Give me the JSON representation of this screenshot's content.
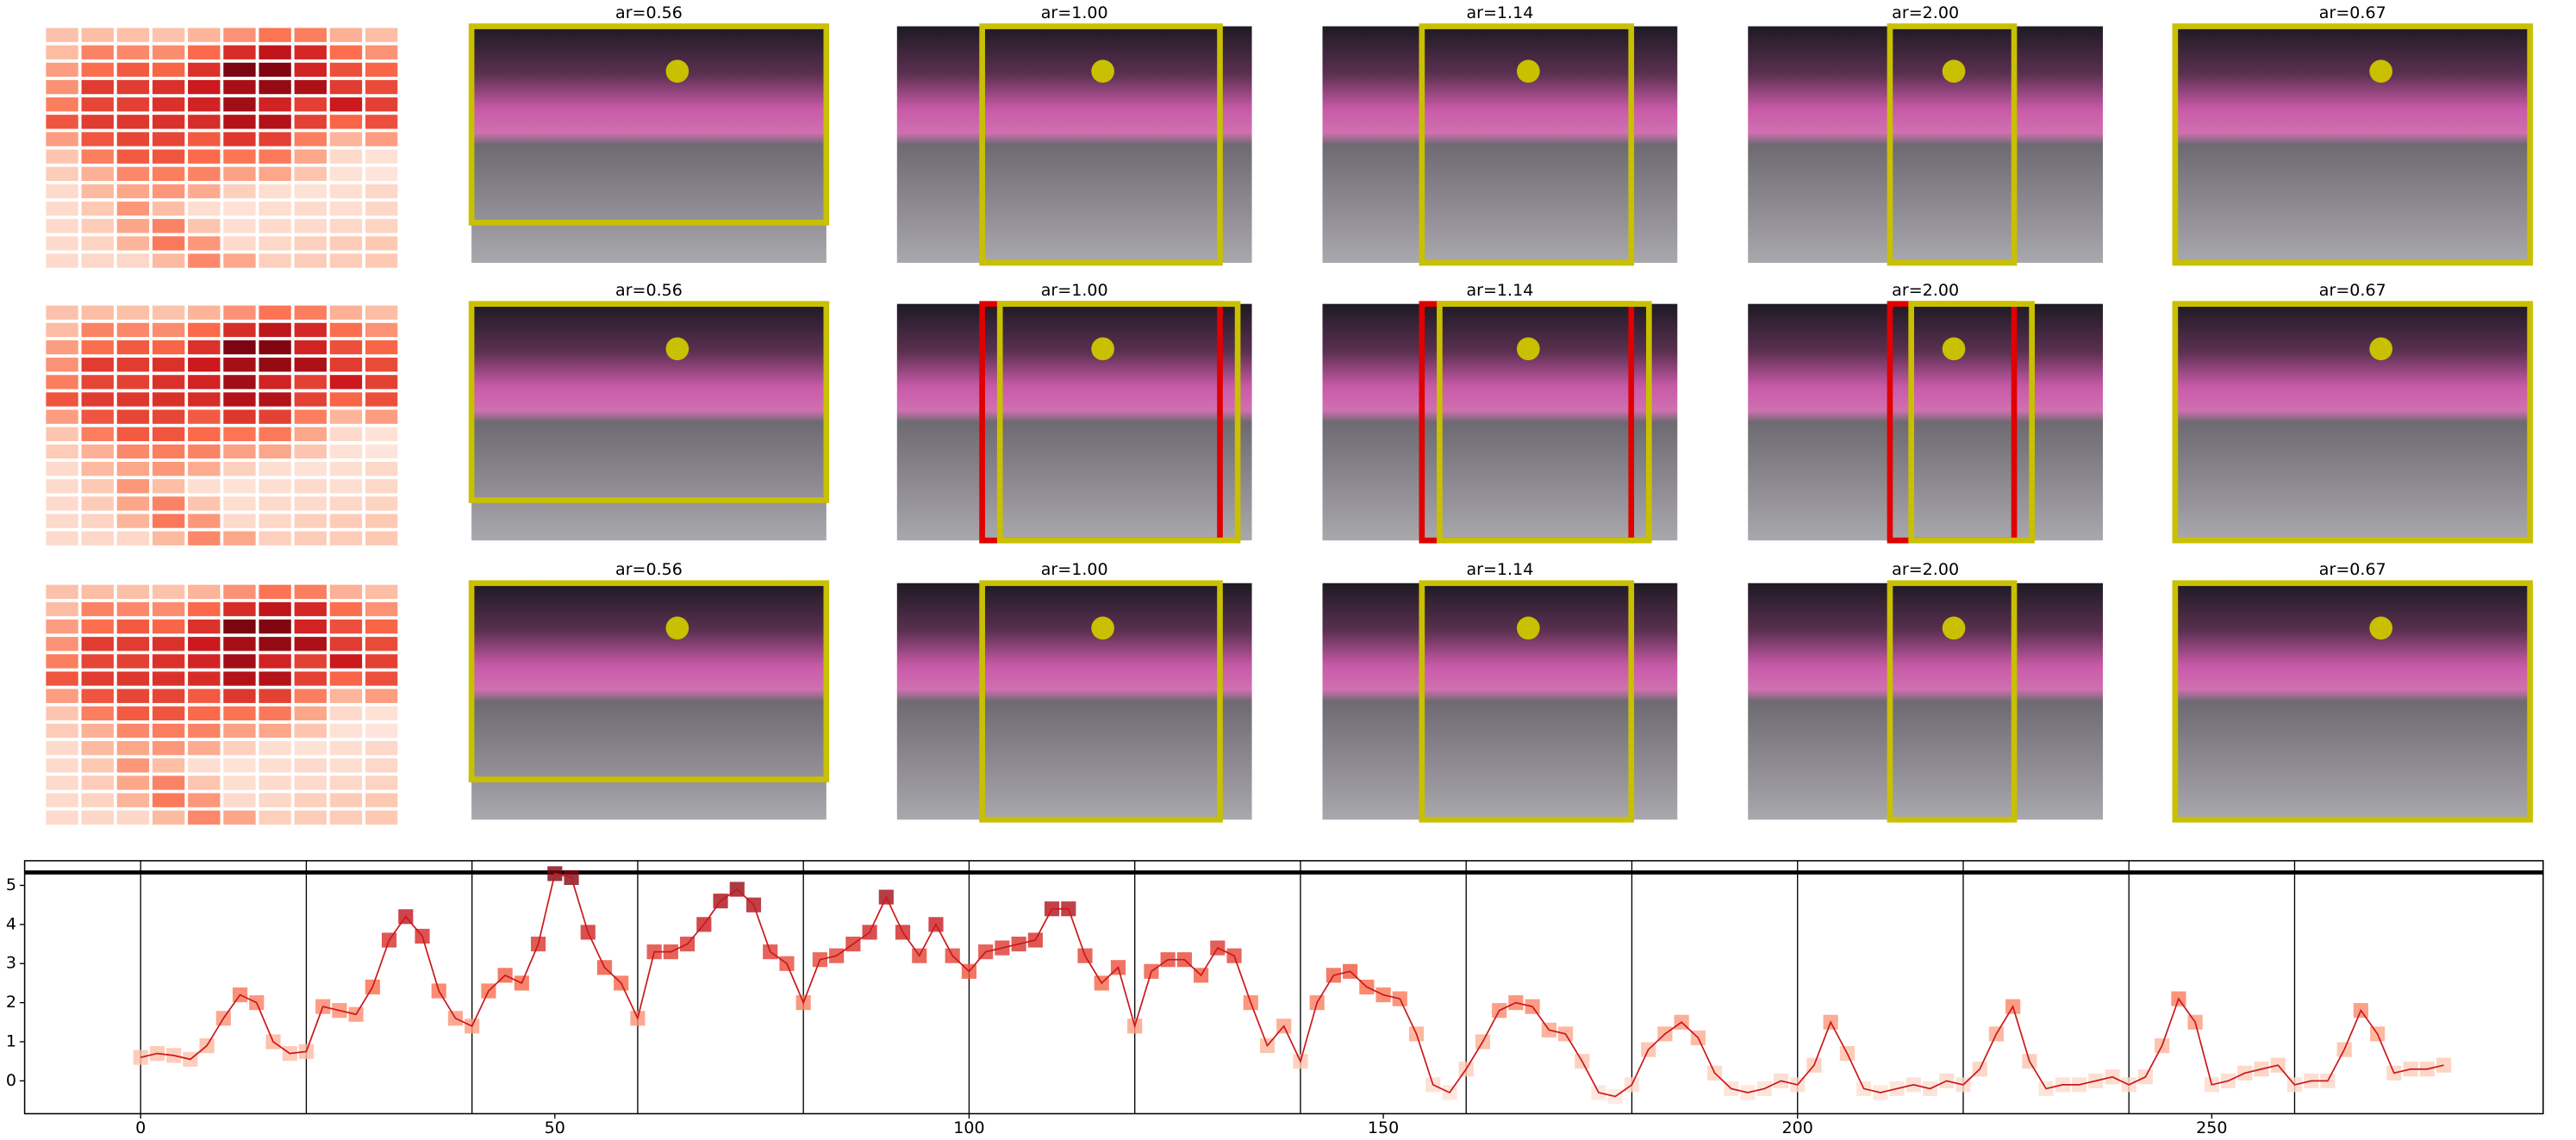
{
  "panels": {
    "rows": [
      {
        "titles": [
          "ar=0.56",
          "ar=1.00",
          "ar=1.14",
          "ar=2.00",
          "ar=0.67"
        ]
      },
      {
        "titles": [
          "ar=0.56",
          "ar=1.00",
          "ar=1.14",
          "ar=2.00",
          "ar=0.67"
        ]
      },
      {
        "titles": [
          "ar=0.56",
          "ar=1.00",
          "ar=1.14",
          "ar=2.00",
          "ar=0.67"
        ]
      }
    ]
  },
  "chart_data": {
    "type": "line",
    "x": [
      0,
      2,
      4,
      6,
      8,
      10,
      12,
      14,
      16,
      18,
      20,
      22,
      24,
      26,
      28,
      30,
      32,
      34,
      36,
      38,
      40,
      42,
      44,
      46,
      48,
      50,
      52,
      54,
      56,
      58,
      60,
      62,
      64,
      66,
      68,
      70,
      72,
      74,
      76,
      78,
      80,
      82,
      84,
      86,
      88,
      90,
      92,
      94,
      96,
      98,
      100,
      102,
      104,
      106,
      108,
      110,
      112,
      114,
      116,
      118,
      120,
      122,
      124,
      126,
      128,
      130,
      132,
      134,
      136,
      138,
      140,
      142,
      144,
      146,
      148,
      150,
      152,
      154,
      156,
      158,
      160,
      162,
      164,
      166,
      168,
      170,
      172,
      174,
      176,
      178,
      180,
      182,
      184,
      186,
      188,
      190,
      192,
      194,
      196,
      198,
      200,
      202,
      204,
      206,
      208,
      210,
      212,
      214,
      216,
      218,
      220,
      222,
      224,
      226,
      228,
      230,
      232,
      234,
      236,
      238,
      240,
      242,
      244,
      246,
      248,
      250,
      252,
      254,
      256,
      258,
      260,
      262,
      264,
      266,
      268,
      270,
      272,
      274,
      276,
      278
    ],
    "values": [
      0.6,
      0.7,
      0.65,
      0.55,
      0.9,
      1.6,
      2.2,
      2.0,
      1.0,
      0.7,
      0.75,
      1.9,
      1.8,
      1.7,
      2.4,
      3.6,
      4.2,
      3.7,
      2.3,
      1.6,
      1.4,
      2.3,
      2.7,
      2.5,
      3.5,
      5.3,
      5.2,
      3.8,
      2.9,
      2.5,
      1.6,
      3.3,
      3.3,
      3.5,
      4.0,
      4.6,
      4.9,
      4.5,
      3.3,
      3.0,
      2.0,
      3.1,
      3.2,
      3.5,
      3.8,
      4.7,
      3.8,
      3.2,
      4.0,
      3.2,
      2.8,
      3.3,
      3.4,
      3.5,
      3.6,
      4.4,
      4.4,
      3.2,
      2.5,
      2.9,
      1.4,
      2.8,
      3.1,
      3.1,
      2.7,
      3.4,
      3.2,
      2.0,
      0.9,
      1.4,
      0.5,
      2.0,
      2.7,
      2.8,
      2.4,
      2.2,
      2.1,
      1.2,
      -0.1,
      -0.3,
      0.3,
      1.0,
      1.8,
      2.0,
      1.9,
      1.3,
      1.2,
      0.5,
      -0.3,
      -0.4,
      -0.1,
      0.8,
      1.2,
      1.5,
      1.1,
      0.2,
      -0.2,
      -0.3,
      -0.2,
      0.0,
      -0.1,
      0.4,
      1.5,
      0.7,
      -0.2,
      -0.3,
      -0.2,
      -0.1,
      -0.2,
      0.0,
      -0.1,
      0.3,
      1.2,
      1.9,
      0.5,
      -0.2,
      -0.1,
      -0.1,
      0.0,
      0.1,
      -0.1,
      0.1,
      0.9,
      2.1,
      1.5,
      -0.1,
      0.0,
      0.2,
      0.3,
      0.4,
      -0.1,
      0.0,
      0.0,
      0.8,
      1.8,
      1.2,
      0.2,
      0.3,
      0.3,
      0.4
    ],
    "color": "#cb181d",
    "colormap": [
      "#fff5f0",
      "#fcbba1",
      "#fb6a4a",
      "#cb181d",
      "#67000d"
    ],
    "xlim": [
      -14,
      290
    ],
    "ylim": [
      -0.84,
      5.63
    ],
    "xticks": [
      0,
      50,
      100,
      150,
      200,
      250
    ],
    "yticks": [
      0,
      1,
      2,
      3,
      4,
      5
    ],
    "vlines": [
      0,
      20,
      40,
      60,
      80,
      100,
      120,
      140,
      160,
      180,
      200,
      220,
      240,
      260
    ],
    "hline": 5.33
  }
}
